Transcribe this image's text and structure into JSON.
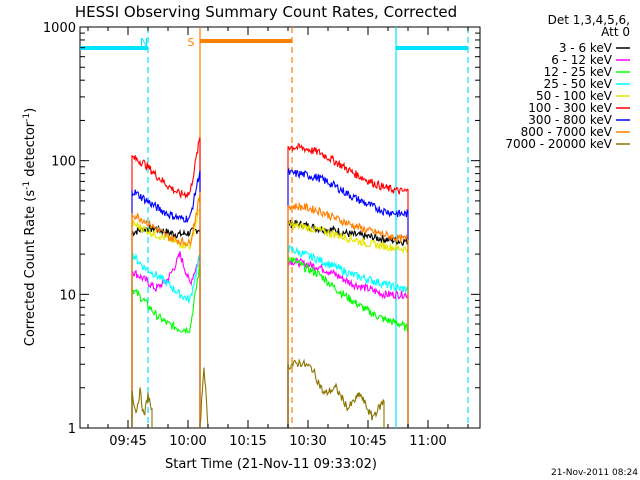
{
  "chart_data": {
    "type": "line",
    "title": "HESSI Observing Summary Count Rates, Corrected",
    "xlabel": "Start Time (21-Nov-11 09:33:02)",
    "ylabel_main": "Corrected Count Rate (s",
    "ylabel_sup1": "-1",
    "ylabel_mid": " detector",
    "ylabel_sup2": "-1",
    "ylabel_end": ")",
    "yscale": "log",
    "ylim": [
      1,
      1000
    ],
    "xlim_minutes_after_0933": [
      0,
      100
    ],
    "x_ticks": [
      "09:45",
      "10:00",
      "10:15",
      "10:30",
      "10:45",
      "11:00"
    ],
    "y_ticks": [
      "1",
      "10",
      "100",
      "1000"
    ],
    "legend_header": [
      "Det 1,3,4,5,6,",
      "Att 0"
    ],
    "legend_position": "right",
    "footer_date": "21-Nov-2011 08:24",
    "flags": [
      {
        "label": "N",
        "color": "#00e5ff",
        "intervals": [
          [
            -2,
            17
          ],
          [
            79,
            97
          ]
        ]
      },
      {
        "label": "S",
        "color": "#ff7f00",
        "intervals": [
          [
            30,
            53
          ]
        ]
      }
    ],
    "series": [
      {
        "name": "3 - 6 keV",
        "color": "#000000",
        "segments": [
          {
            "t": [
              13,
              16,
              19,
              22,
              25,
              27.5,
              30
            ],
            "v": [
              29,
              31,
              31,
              29,
              28,
              29,
              31
            ]
          },
          {
            "t": [
              52,
              56,
              60,
              64,
              68,
              72,
              76,
              80,
              82
            ],
            "v": [
              34,
              33,
              31,
              30,
              28,
              27,
              26,
              25,
              25
            ]
          }
        ]
      },
      {
        "name": "6 - 12 keV",
        "color": "#ff00ff",
        "segments": [
          {
            "t": [
              13,
              16,
              19,
              22,
              24,
              25,
              27.5,
              30
            ],
            "v": [
              15,
              13,
              11,
              13,
              17,
              20,
              12,
              19
            ]
          },
          {
            "t": [
              52,
              56,
              60,
              64,
              68,
              72,
              76,
              80,
              82
            ],
            "v": [
              18,
              17,
              16,
              14,
              12,
              11,
              10,
              10,
              10
            ]
          }
        ]
      },
      {
        "name": "12 - 25 keV",
        "color": "#00ff00",
        "segments": [
          {
            "t": [
              13,
              16,
              19,
              22,
              25,
              27.5,
              30
            ],
            "v": [
              11,
              9,
              7,
              6,
              5.5,
              5.5,
              17
            ]
          },
          {
            "t": [
              52,
              56,
              60,
              64,
              68,
              72,
              76,
              80,
              82
            ],
            "v": [
              19,
              16,
              14,
              11,
              9,
              7.5,
              6.5,
              6,
              5.5
            ]
          }
        ]
      },
      {
        "name": "25 - 50 keV",
        "color": "#00ffff",
        "segments": [
          {
            "t": [
              13,
              16,
              19,
              22,
              25,
              27.5,
              30
            ],
            "v": [
              20,
              16,
              14,
              12,
              10,
              9,
              20
            ]
          },
          {
            "t": [
              52,
              56,
              60,
              64,
              68,
              72,
              76,
              80,
              82
            ],
            "v": [
              22,
              20,
              18,
              16,
              14,
              13,
              12,
              11,
              11
            ]
          }
        ]
      },
      {
        "name": "50 - 100 keV",
        "color": "#e6e600",
        "segments": [
          {
            "t": [
              13,
              16,
              19,
              22,
              25,
              27.5,
              30
            ],
            "v": [
              34,
              31,
              28,
              26,
              24,
              23,
              45
            ]
          },
          {
            "t": [
              52,
              56,
              60,
              64,
              68,
              72,
              76,
              80,
              82
            ],
            "v": [
              33,
              32,
              30,
              28,
              26,
              24,
              23,
              22,
              22
            ]
          }
        ]
      },
      {
        "name": "100 - 300 keV",
        "color": "#ff0000",
        "segments": [
          {
            "t": [
              13,
              16,
              19,
              22,
              25,
              27.5,
              30
            ],
            "v": [
              106,
              96,
              78,
              65,
              56,
              57,
              150
            ]
          },
          {
            "t": [
              52,
              56,
              60,
              64,
              68,
              72,
              76,
              80,
              82
            ],
            "v": [
              128,
              124,
              115,
              98,
              82,
              71,
              63,
              59,
              59
            ]
          }
        ]
      },
      {
        "name": "300 - 800 keV",
        "color": "#0000ff",
        "segments": [
          {
            "t": [
              13,
              16,
              19,
              22,
              25,
              27.5,
              30
            ],
            "v": [
              60,
              52,
              45,
              40,
              37,
              37,
              85
            ]
          },
          {
            "t": [
              52,
              56,
              60,
              64,
              68,
              72,
              76,
              80,
              82
            ],
            "v": [
              81,
              79,
              74,
              64,
              54,
              47,
              42,
              40,
              40
            ]
          }
        ]
      },
      {
        "name": "800 - 7000 keV",
        "color": "#ff7f00",
        "segments": [
          {
            "t": [
              13,
              16,
              19,
              22,
              25,
              27.5,
              30
            ],
            "v": [
              40,
              36,
              31,
              27,
              25,
              24,
              55
            ]
          },
          {
            "t": [
              52,
              56,
              60,
              64,
              68,
              72,
              76,
              80,
              82
            ],
            "v": [
              46,
              45,
              42,
              37,
              33,
              30,
              28,
              26,
              26
            ]
          }
        ]
      },
      {
        "name": "7000 - 20000 keV",
        "color": "#8b7500",
        "segments": [
          {
            "t": [
              13,
              14,
              15,
              16,
              17,
              18
            ],
            "v": [
              1.9,
              1.3,
              1.9,
              1.2,
              1.8,
              1.3
            ]
          },
          {
            "t": [
              30,
              31,
              32
            ],
            "v": [
              1,
              3,
              1
            ]
          },
          {
            "t": [
              52,
              55,
              58,
              61,
              64,
              67,
              70,
              73,
              76
            ],
            "v": [
              2.9,
              3.1,
              2.8,
              1.8,
              2.0,
              1.4,
              1.8,
              1.2,
              1.6
            ]
          }
        ]
      }
    ]
  }
}
